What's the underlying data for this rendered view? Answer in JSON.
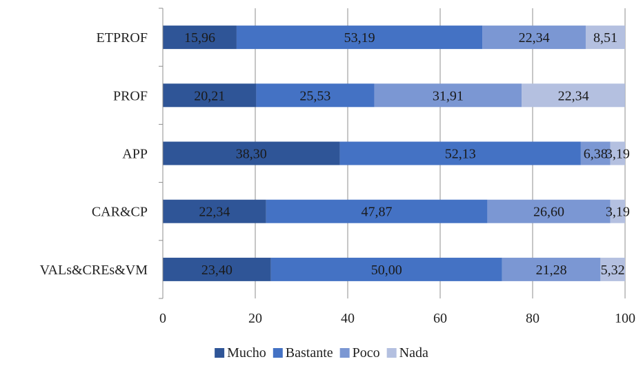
{
  "chart_data": {
    "type": "bar",
    "orientation": "horizontal",
    "stacked": true,
    "categories": [
      "ETPROF",
      "PROF",
      "APP",
      "CAR&CP",
      "VALs&CREs&VM"
    ],
    "series": [
      {
        "name": "Mucho",
        "values": [
          15.96,
          20.21,
          38.3,
          22.34,
          23.4
        ],
        "labels": [
          "15,96",
          "20,21",
          "38,30",
          "22,34",
          "23,40"
        ]
      },
      {
        "name": "Bastante",
        "values": [
          53.19,
          25.53,
          52.13,
          47.87,
          50.0
        ],
        "labels": [
          "53,19",
          "25,53",
          "52,13",
          "47,87",
          "50,00"
        ]
      },
      {
        "name": "Poco",
        "values": [
          22.34,
          31.91,
          6.38,
          26.6,
          21.28
        ],
        "labels": [
          "22,34",
          "31,91",
          "6,38",
          "26,60",
          "21,28"
        ]
      },
      {
        "name": "Nada",
        "values": [
          8.51,
          22.34,
          3.19,
          3.19,
          5.32
        ],
        "labels": [
          "8,51",
          "22,34",
          "3,19",
          "3,19",
          "5,32"
        ]
      }
    ],
    "colors": [
      "#2f5597",
      "#4472c4",
      "#7b97d3",
      "#b4c0e0"
    ],
    "xlim": [
      0,
      100
    ],
    "xticks": [
      "0",
      "20",
      "40",
      "60",
      "80",
      "100"
    ],
    "grid": true,
    "legend_position": "bottom",
    "title": "",
    "xlabel": "",
    "ylabel": ""
  }
}
